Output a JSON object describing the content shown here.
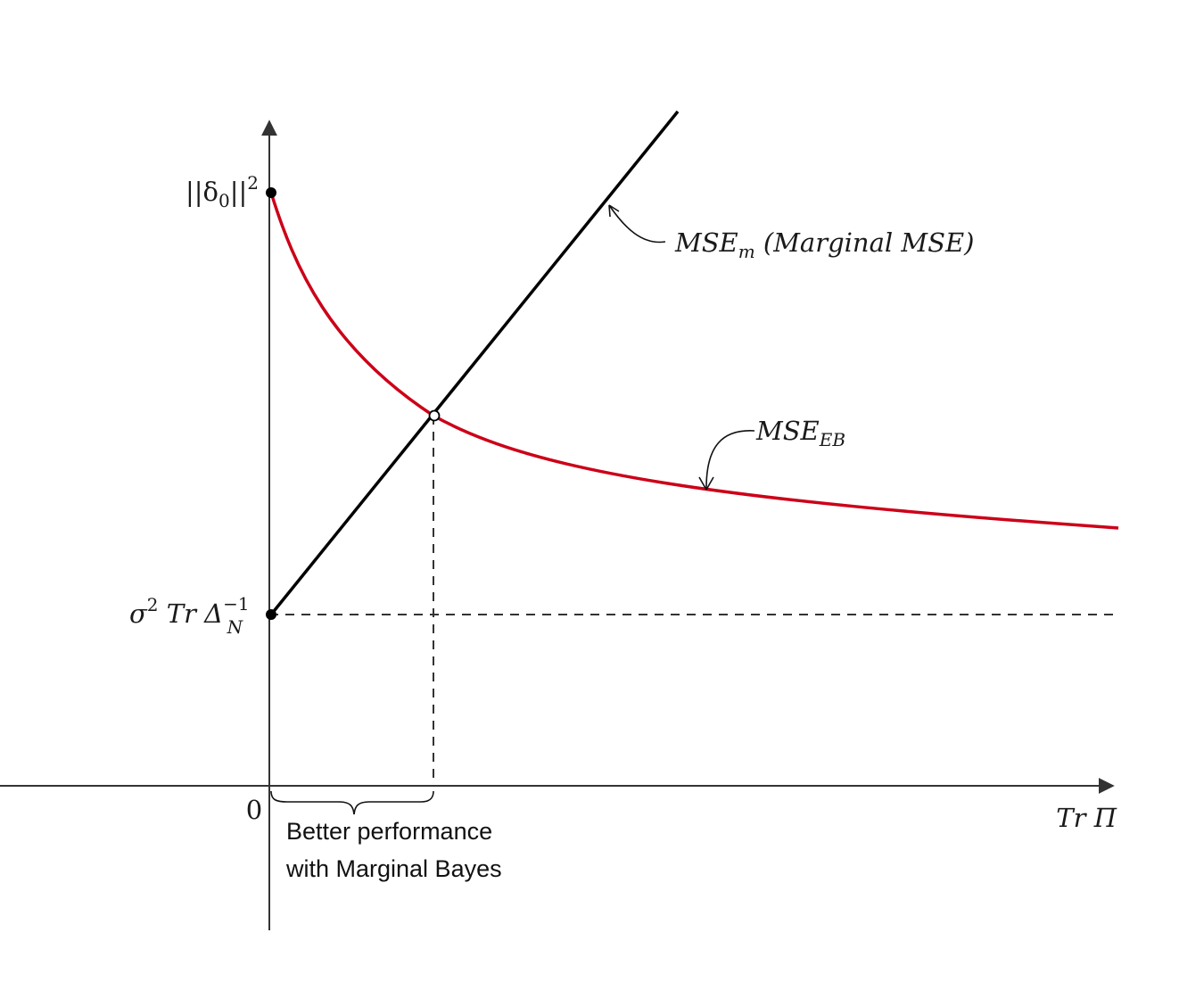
{
  "diagram": {
    "y_axis_labels": {
      "delta_norm_label": {
        "pre": "||δ",
        "sub": "0",
        "mid": "||",
        "sup": "2"
      },
      "sigma_trace_label": {
        "sigma": "σ",
        "sigma_sup": "2",
        "trace": " Tr Δ",
        "inv_sup": "−1",
        "sub": "N"
      },
      "origin_label": "0"
    },
    "x_axis_label": "Tr Π",
    "mse_m_label": {
      "pre": "MSE",
      "sub": "m",
      "rest": " (Marginal MSE)"
    },
    "mse_eb_label": {
      "pre": "MSE",
      "sub": "EB"
    },
    "brace_caption": {
      "line1": "Better performance",
      "line2": "with Marginal Bayes"
    },
    "colors": {
      "mse_m": "#000000",
      "mse_eb": "#cc0018",
      "axes": "#333333"
    }
  }
}
